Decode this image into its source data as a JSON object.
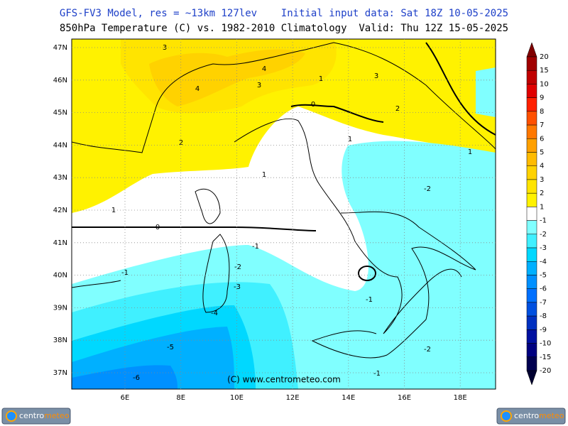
{
  "header": {
    "line1": "GFS-FV3 Model, res = ~13km 127lev    Initial input data: Sat 18Z 10-05-2025",
    "line2": "850hPa Temperature (C) vs. 1982-2010 Climatology  Valid: Thu 12Z 15-05-2025"
  },
  "lat_labels": [
    "47N",
    "46N",
    "45N",
    "44N",
    "43N",
    "42N",
    "41N",
    "40N",
    "39N",
    "38N",
    "37N"
  ],
  "lon_labels": [
    "6E",
    "8E",
    "10E",
    "12E",
    "14E",
    "16E",
    "18E"
  ],
  "contour_labels": [
    "3",
    "4",
    "4",
    "3",
    "3",
    "2",
    "2",
    "1",
    "1",
    "1",
    "1",
    "1",
    "0",
    "0",
    "-1",
    "-2",
    "-2",
    "-3",
    "-4",
    "-5",
    "-6",
    "-1",
    "-1",
    "-2",
    "-1"
  ],
  "copyright": "(C) www.centrometeo.com",
  "logo": {
    "part1": "centro",
    "part2": "meteo"
  },
  "colorbar": {
    "labels": [
      20,
      15,
      10,
      9,
      8,
      7,
      6,
      5,
      4,
      3,
      2,
      1,
      -1,
      -2,
      -3,
      -4,
      -5,
      -6,
      -7,
      -8,
      -9,
      -10,
      -15,
      -20
    ],
    "colors": [
      "#800000",
      "#a00000",
      "#c00000",
      "#e00000",
      "#ff2000",
      "#ff5000",
      "#ff7800",
      "#ffa000",
      "#ffbb00",
      "#ffd200",
      "#ffe400",
      "#fff200",
      "#ffffff",
      "#80ffff",
      "#40f0ff",
      "#00d8ff",
      "#00b0ff",
      "#0090ff",
      "#0070ff",
      "#0050e0",
      "#0030c0",
      "#0010a0",
      "#000080",
      "#000050",
      "#000030"
    ]
  }
}
